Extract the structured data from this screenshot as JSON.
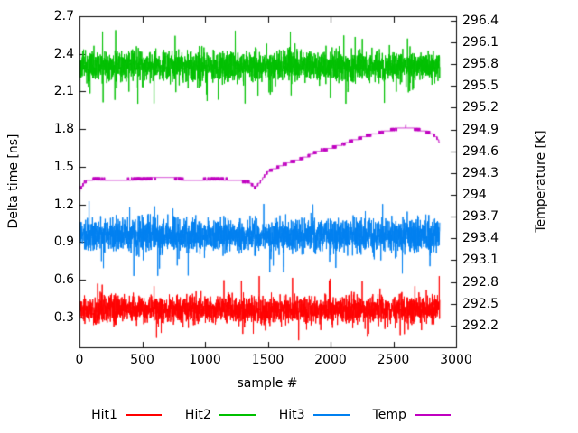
{
  "chart_data": {
    "type": "line",
    "title": "",
    "xlabel": "sample #",
    "ylabel_left": "Delta time [ns]",
    "ylabel_right": "Temperature [K]",
    "grid": false,
    "legend_position": "below",
    "x_range": [
      0,
      3000
    ],
    "x_ticks": [
      "0",
      "500",
      "1000",
      "1500",
      "2000",
      "2500",
      "3000"
    ],
    "y_left_range": [
      0.06,
      2.7
    ],
    "y_left_ticks": [
      "0.3",
      "0.6",
      "0.9",
      "1.2",
      "1.5",
      "1.8",
      "2.1",
      "2.4",
      "2.7"
    ],
    "y_right_range": [
      291.9,
      296.46
    ],
    "y_right_ticks": [
      "292.2",
      "292.5",
      "292.8",
      "293.1",
      "293.4",
      "293.7",
      "294",
      "294.3",
      "294.6",
      "294.9",
      "295.2",
      "295.5",
      "295.8",
      "296.1",
      "296.4"
    ],
    "n_samples": 2870,
    "series": [
      {
        "name": "Hit1",
        "axis": "left",
        "color": "#ff0000",
        "type": "noisy-line",
        "mean": 0.36,
        "sigma": 0.055,
        "approx_band": [
          0.25,
          0.48
        ],
        "spike_range": [
          0.14,
          0.64
        ]
      },
      {
        "name": "Hit2",
        "axis": "left",
        "color": "#00c000",
        "type": "noisy-line",
        "mean": 2.3,
        "sigma": 0.06,
        "approx_band": [
          2.18,
          2.44
        ],
        "spike_range": [
          2.02,
          2.58
        ]
      },
      {
        "name": "Hit3",
        "axis": "left",
        "color": "#0080f0",
        "type": "noisy-line",
        "mean": 0.95,
        "sigma": 0.065,
        "approx_band": [
          0.82,
          1.1
        ],
        "spike_range": [
          0.67,
          1.3
        ]
      },
      {
        "name": "Temp",
        "axis": "right",
        "color": "#c000c0",
        "type": "step-line",
        "quantize_step": 0.04,
        "keypoints": [
          [
            0,
            294.05
          ],
          [
            40,
            294.18
          ],
          [
            120,
            294.22
          ],
          [
            300,
            294.2
          ],
          [
            500,
            294.22
          ],
          [
            700,
            294.24
          ],
          [
            900,
            294.2
          ],
          [
            1100,
            294.22
          ],
          [
            1250,
            294.2
          ],
          [
            1350,
            294.18
          ],
          [
            1400,
            294.1
          ],
          [
            1450,
            294.2
          ],
          [
            1500,
            294.32
          ],
          [
            1600,
            294.4
          ],
          [
            1700,
            294.46
          ],
          [
            1800,
            294.52
          ],
          [
            1900,
            294.6
          ],
          [
            2000,
            294.64
          ],
          [
            2100,
            294.7
          ],
          [
            2200,
            294.76
          ],
          [
            2300,
            294.82
          ],
          [
            2400,
            294.86
          ],
          [
            2500,
            294.9
          ],
          [
            2600,
            294.93
          ],
          [
            2700,
            294.9
          ],
          [
            2780,
            294.86
          ],
          [
            2840,
            294.8
          ],
          [
            2870,
            294.72
          ]
        ]
      }
    ]
  }
}
